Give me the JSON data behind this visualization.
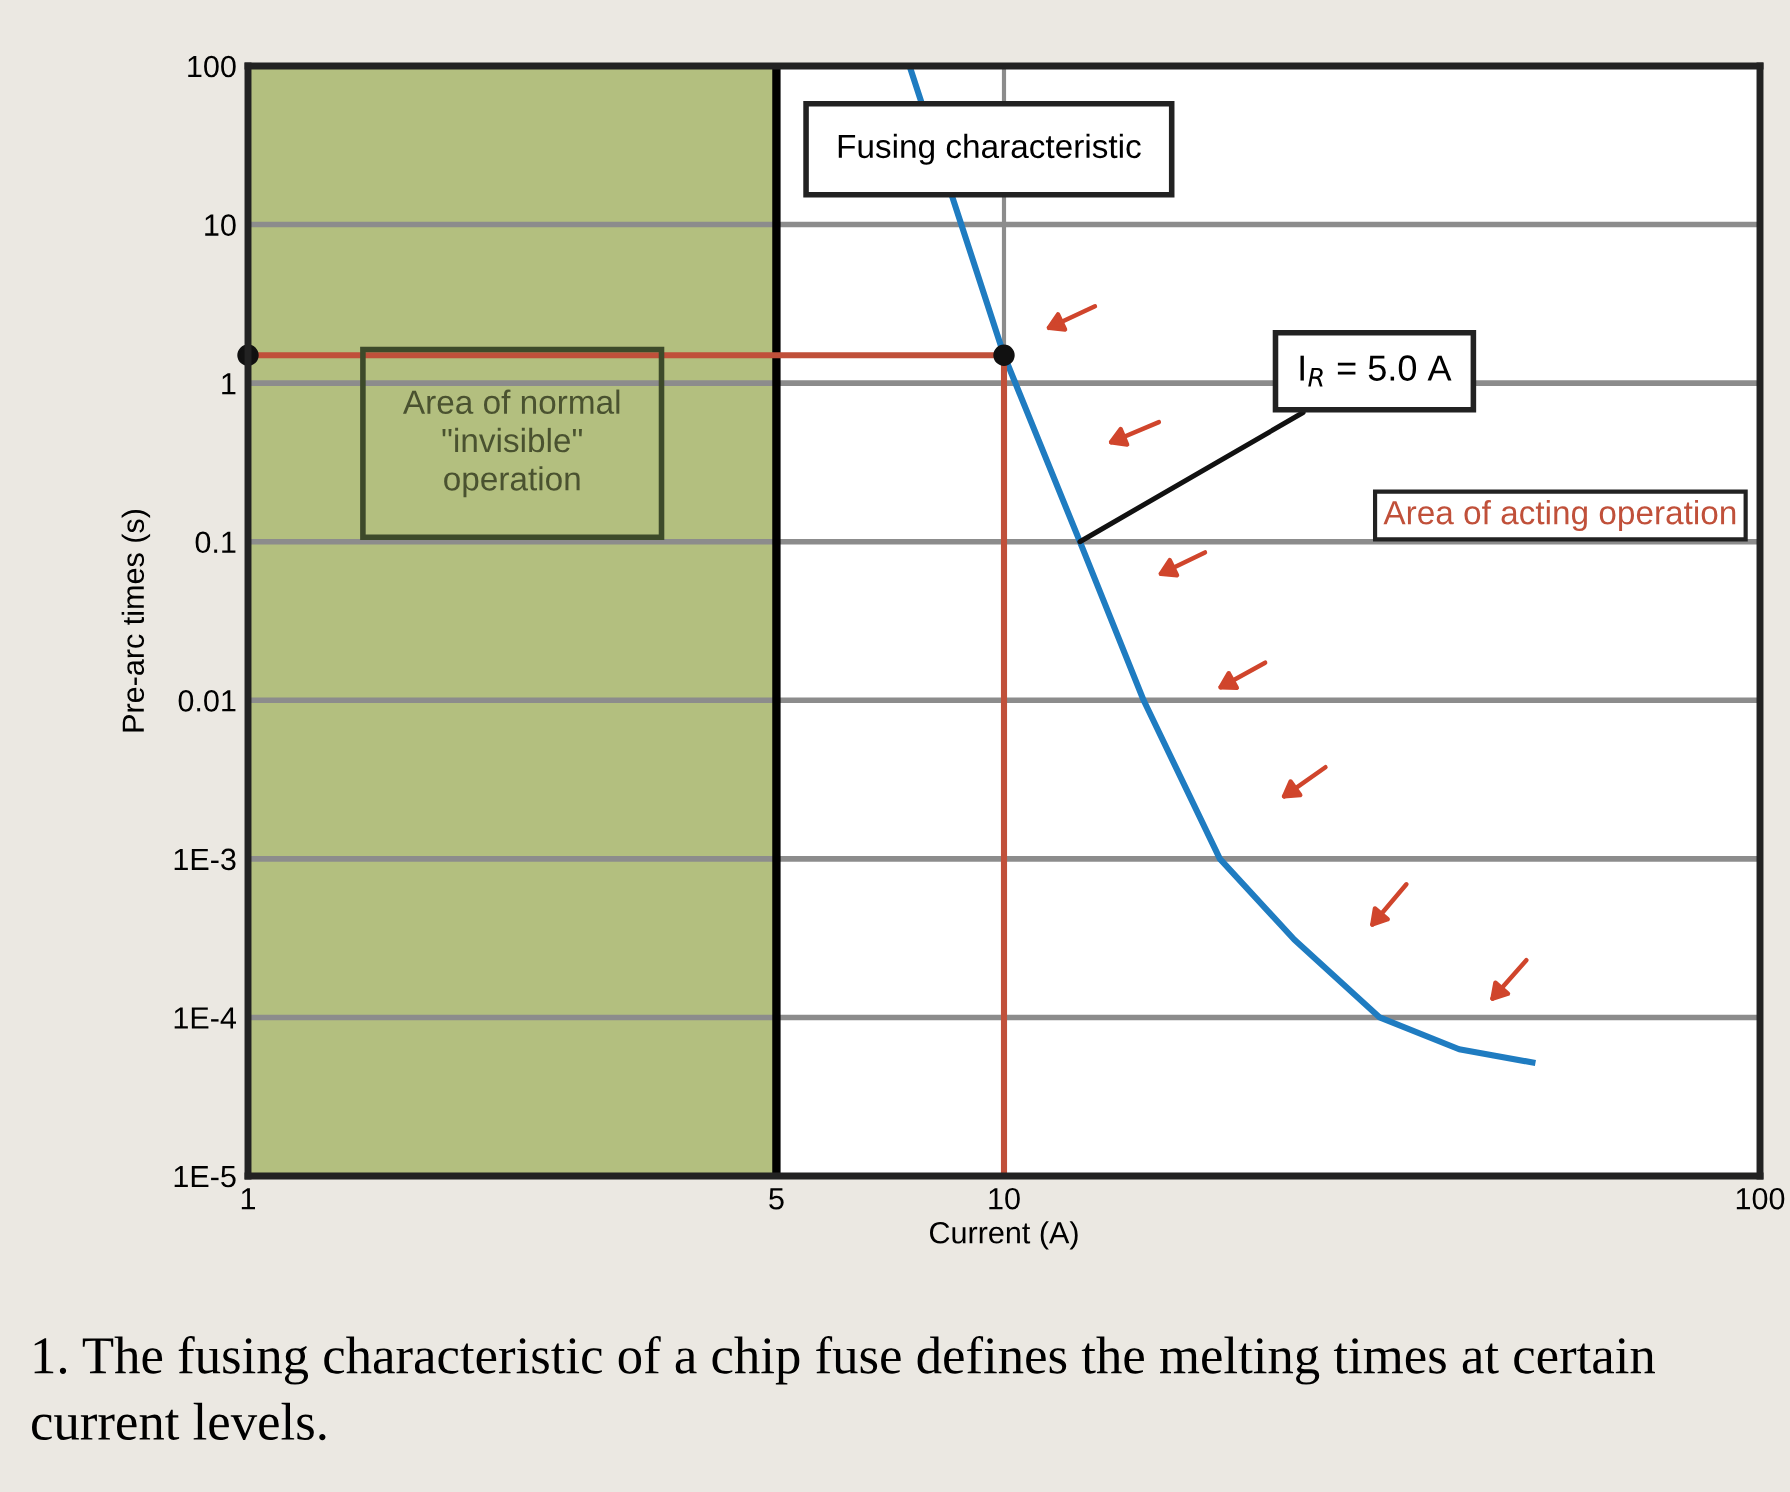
{
  "chart_data": {
    "type": "line",
    "xlabel": "Current (A)",
    "ylabel": "Pre-arc times (s)",
    "log": "xy",
    "xlim": [
      1,
      100
    ],
    "ylim": [
      1e-05,
      100
    ],
    "xticks": [
      1,
      5,
      10,
      100
    ],
    "yticks": [
      {
        "value": 1e-05,
        "label": "1E-5"
      },
      {
        "value": 0.0001,
        "label": "1E-4"
      },
      {
        "value": 0.001,
        "label": "1E-3"
      },
      0.01,
      0.1,
      1,
      10,
      100
    ],
    "grid": "y",
    "legend": false,
    "series": [
      {
        "color": "#1f7cc1",
        "x": [
          7.5,
          10,
          12.6,
          15.3,
          19.3,
          24.2,
          31.4,
          40,
          50
        ],
        "values": [
          100,
          1.5,
          0.1,
          0.01,
          0.001,
          0.00031,
          0.0001,
          6.3e-05,
          5.2e-05
        ]
      },
      {
        "type": "line",
        "color": "#c0503a",
        "x": [
          1,
          10,
          10
        ],
        "values": [
          1.5,
          1.5,
          1e-05
        ]
      },
      {
        "type": "scatter",
        "color": "#111111",
        "x": [
          1,
          10
        ],
        "values": [
          1.5,
          1.5
        ]
      }
    ],
    "bands": [
      {
        "axis": "x",
        "from": 1,
        "to": 5,
        "label": "Area of normal\n\"invisible\"\noperation",
        "color": "#b3bf7f"
      }
    ],
    "ref_lines": [
      {
        "axis": "x",
        "value": 5,
        "color": "#000000"
      },
      {
        "axis": "x",
        "value": 10,
        "color": "#8c8c8c"
      }
    ],
    "annotations": [
      "Fusing characteristic",
      {
        "text": "I$_{R}$ = 5.0 A",
        "x": 12.6,
        "y": 0.1
      },
      "Area of acting operation",
      "1. The fusing characteristic of a chip fuse defines the melting times at certain current levels."
    ]
  }
}
